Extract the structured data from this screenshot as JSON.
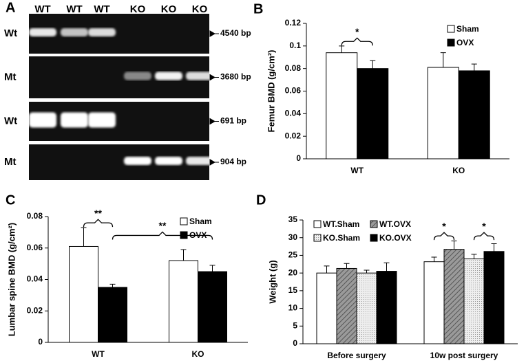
{
  "panel_labels": [
    "A",
    "B",
    "C",
    "D"
  ],
  "gel": {
    "lanes": [
      "WT",
      "WT",
      "WT",
      "KO",
      "KO",
      "KO"
    ],
    "rows": [
      {
        "label": "Wt",
        "size": "4540 bp"
      },
      {
        "label": "Mt",
        "size": "3680 bp"
      },
      {
        "label": "Wt",
        "size": "691 bp"
      },
      {
        "label": "Mt",
        "size": "904 bp"
      }
    ]
  },
  "chart_data": [
    {
      "type": "bar",
      "ylabel": "Femur BMD (g/cm²)",
      "categories": [
        "WT",
        "KO"
      ],
      "series": [
        {
          "name": "Sham",
          "color": "#ffffff",
          "values": [
            0.094,
            0.081
          ],
          "errors": [
            0.006,
            0.013
          ]
        },
        {
          "name": "OVX",
          "color": "#000000",
          "values": [
            0.08,
            0.078
          ],
          "errors": [
            0.007,
            0.006
          ]
        }
      ],
      "ylim": [
        0,
        0.12
      ],
      "yticks": [
        0,
        0.02,
        0.04,
        0.06,
        0.08,
        0.1,
        0.12
      ],
      "legend": "upper right",
      "annotations": [
        "*"
      ]
    },
    {
      "type": "bar",
      "ylabel": "Lumbar spine BMD (g/cm²)",
      "categories": [
        "WT",
        "KO"
      ],
      "series": [
        {
          "name": "Sham",
          "color": "#ffffff",
          "values": [
            0.061,
            0.052
          ],
          "errors": [
            0.012,
            0.007
          ]
        },
        {
          "name": "OVX",
          "color": "#000000",
          "values": [
            0.035,
            0.045
          ],
          "errors": [
            0.002,
            0.004
          ]
        }
      ],
      "ylim": [
        0,
        0.08
      ],
      "yticks": [
        0,
        0.02,
        0.04,
        0.06,
        0.08
      ],
      "legend": "upper right",
      "annotations": [
        "**",
        "**"
      ]
    },
    {
      "type": "bar",
      "ylabel": "Weight (g)",
      "categories": [
        "Before surgery",
        "10w post surgery"
      ],
      "series": [
        {
          "name": "WT.Sham",
          "color": "#ffffff",
          "values": [
            20,
            23.2
          ],
          "errors": [
            2,
            1.3
          ]
        },
        {
          "name": "WT.OVX",
          "color": "#808080",
          "pattern": "hatch",
          "values": [
            21.3,
            26.7
          ],
          "errors": [
            1.4,
            2.4
          ]
        },
        {
          "name": "KO.Sham",
          "color": "#e0e0e0",
          "pattern": "dots",
          "values": [
            20,
            24
          ],
          "errors": [
            0.8,
            1.3
          ]
        },
        {
          "name": "KO.OVX",
          "color": "#000000",
          "values": [
            20.5,
            26.1
          ],
          "errors": [
            2.4,
            2.2
          ]
        }
      ],
      "ylim": [
        0,
        35
      ],
      "yticks": [
        0,
        5,
        10,
        15,
        20,
        25,
        30,
        35
      ],
      "legend": "upper left",
      "annotations": [
        "*",
        "*"
      ]
    }
  ]
}
